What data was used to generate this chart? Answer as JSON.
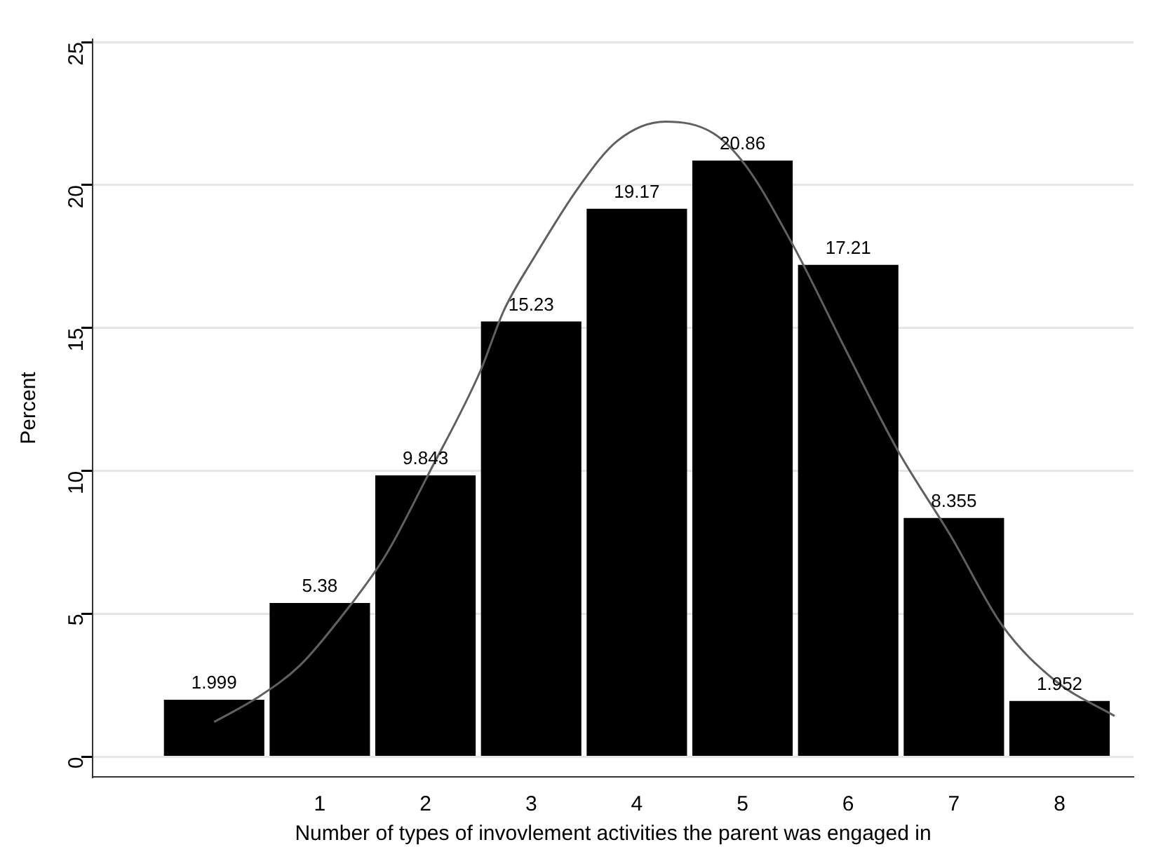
{
  "chart_data": {
    "type": "histogram",
    "xlabel": "Number of types of invovlement activities the parent was engaged in",
    "ylabel": "Percent",
    "bins": [
      -0.5,
      0.5,
      1.5,
      2.5,
      3.5,
      4.5,
      5.5,
      6.5,
      7.5,
      8.5
    ],
    "values": [
      1.999,
      5.38,
      9.843,
      15.23,
      19.17,
      20.86,
      17.21,
      8.355,
      1.952
    ],
    "color": "#000000",
    "value_labels": [
      "1.999",
      "5.38",
      "9.843",
      "15.23",
      "19.17",
      "20.86",
      "17.21",
      "8.355",
      "1.952"
    ],
    "series": [
      {
        "type": "line",
        "color": "#606060",
        "marker": "none",
        "line_style": "solid",
        "x": [
          0.0,
          0.4,
          0.81,
          1.21,
          1.62,
          2.02,
          2.52,
          2.74,
          3.01,
          3.46,
          3.82,
          4.27,
          4.72,
          5.03,
          5.48,
          5.98,
          6.47,
          6.97,
          7.46,
          7.96,
          8.52
        ],
        "values": [
          1.22,
          2.05,
          3.19,
          4.93,
          7.03,
          9.83,
          13.5,
          15.6,
          17.36,
          19.98,
          21.56,
          22.22,
          21.82,
          20.68,
          17.88,
          14.21,
          10.71,
          7.73,
          4.58,
          2.66,
          1.43
        ]
      }
    ],
    "xlim": [
      -1.15,
      8.7
    ],
    "xticks": [
      1,
      2,
      3,
      4,
      5,
      6,
      7,
      8
    ],
    "ylim": [
      -0.7,
      25.1
    ],
    "yticks": [
      0,
      5,
      10,
      15,
      20,
      25
    ],
    "grid": "y",
    "legend": false
  }
}
